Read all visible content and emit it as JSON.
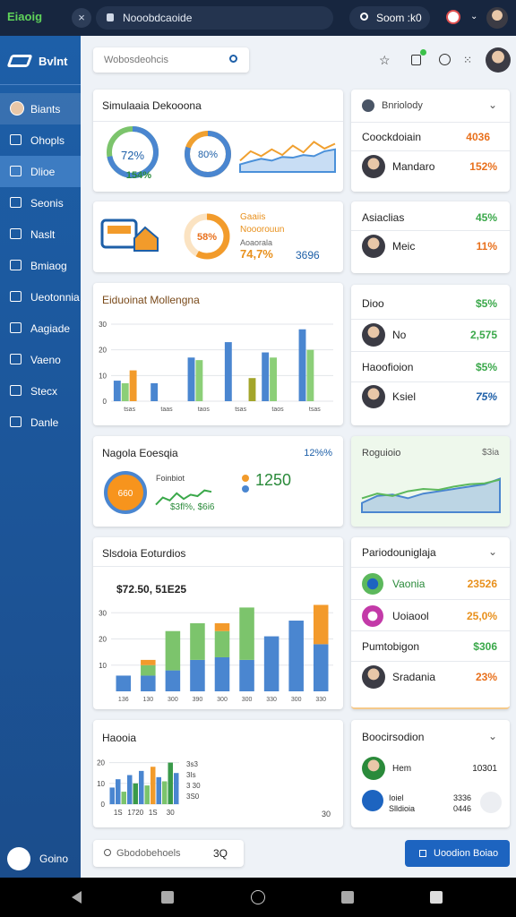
{
  "browser": {
    "logo": "Eiaoig",
    "address": "Nooobdcaoide",
    "search": "Soom :k0"
  },
  "sidebar": {
    "brand": "Bvlnt",
    "items": [
      "Biants",
      "Ohopls",
      "Dlioe",
      "Seonis",
      "Naslt",
      "Bmiaog",
      "Ueotonnia",
      "Aagiade",
      "Vaeno",
      "Stecx",
      "Danle"
    ],
    "footer": "Goino"
  },
  "search": {
    "placeholder": "Wobosdeohcis"
  },
  "overview": {
    "title": "Simulaaia Dekooona",
    "donut1": {
      "value": 72,
      "label": "72%",
      "sub": "154%"
    },
    "donut2": {
      "value": 80,
      "label": "80%"
    },
    "trend": {
      "ylim": [
        0,
        100
      ],
      "series": [
        {
          "color": "#f0a030",
          "values": [
            30,
            55,
            42,
            60,
            45,
            70,
            52,
            80,
            62,
            75
          ]
        },
        {
          "color": "#4a90d9",
          "values": [
            20,
            28,
            35,
            30,
            40,
            38,
            45,
            42,
            55,
            60
          ]
        }
      ]
    }
  },
  "transit": {
    "donut": {
      "value": 58,
      "label": "58%"
    },
    "lines": [
      "Gaaiis",
      "Nooorouun",
      "Aoaorala"
    ],
    "stat1": "74,7%",
    "stat2": "3696"
  },
  "enrollment": {
    "title": "Eiduoinat Mollengna",
    "categories": [
      "tsas",
      "taas",
      "taos",
      "tsas",
      "taos",
      "tsas"
    ],
    "ylim": [
      0,
      30
    ],
    "yticks": [
      0,
      10,
      20,
      30
    ],
    "series": [
      {
        "color": "#4a86d0",
        "values": [
          8,
          7,
          17,
          23,
          19,
          28
        ]
      },
      {
        "color": "#8ccf78",
        "values": [
          7,
          null,
          16,
          null,
          17,
          20
        ]
      },
      {
        "color": "#f29b2b",
        "values": [
          12,
          null,
          null,
          null,
          null,
          null
        ]
      },
      {
        "color": "#a3a52a",
        "values": [
          null,
          null,
          null,
          9,
          null,
          null
        ]
      }
    ]
  },
  "network": {
    "title": "Nagola Eoesqia",
    "badge": "12%%",
    "donut": "660",
    "chart_label": "Foinbiot",
    "trend": {
      "ylim": [
        0,
        100
      ],
      "color": "#3aa84a",
      "values": [
        20,
        45,
        35,
        60,
        40,
        55,
        50,
        70,
        65
      ]
    },
    "big": "1250",
    "stats": "$3fl%, $6i6"
  },
  "sales": {
    "title": "Slsdoia Eoturdios",
    "subtitle": "$72.50, 51E25",
    "categories": [
      "136",
      "130",
      "300",
      "390",
      "300",
      "300",
      "330",
      "300",
      "330"
    ],
    "ylim": [
      0,
      40
    ],
    "yticks": [
      10,
      20,
      30
    ],
    "series": [
      {
        "color": "#4a86d0",
        "values": [
          6,
          6,
          8,
          12,
          13,
          12,
          21,
          27,
          18
        ]
      },
      {
        "color": "#7cc46c",
        "values": [
          0,
          4,
          15,
          14,
          10,
          20,
          0,
          0,
          0
        ]
      },
      {
        "color": "#f39a2b",
        "values": [
          0,
          2,
          0,
          0,
          3,
          0,
          0,
          0,
          15
        ]
      }
    ]
  },
  "mini": {
    "title": "Haooia",
    "ylim": [
      0,
      25
    ],
    "yticks": [
      0,
      10,
      20
    ],
    "xlabels": [
      "1S",
      "1720",
      "1S",
      "30"
    ],
    "values": [
      8,
      12,
      6,
      14,
      10,
      16,
      9,
      18,
      13,
      11,
      20,
      15
    ],
    "colors": [
      "#4a86d0",
      "#4a86d0",
      "#7cc46c",
      "#4a86d0",
      "#3a9a4a",
      "#4a86d0",
      "#7cc46c",
      "#f29b2b",
      "#4a86d0",
      "#7cc46c",
      "#3a9a4a",
      "#4a86d0"
    ],
    "legend": [
      "3s3",
      "3Is",
      "3 30",
      "3S0"
    ],
    "corner": "30"
  },
  "footer_search": {
    "placeholder": "Gbodobehoels",
    "hint": "3Q"
  },
  "submit": "Uoodion Boiao",
  "ranking": {
    "title": "Bnriolody",
    "rows": [
      {
        "name": "Coockdoiain",
        "value": "4036"
      },
      {
        "name": "Mandaro",
        "value": "152%"
      }
    ]
  },
  "accounts": {
    "rows": [
      {
        "name": "Asiaclias",
        "value": "45%"
      },
      {
        "name": "Meic",
        "value": "11%"
      }
    ]
  },
  "users": {
    "rows": [
      {
        "name": "Dioo",
        "value": "$5%"
      },
      {
        "name": "No",
        "value": "2,575"
      },
      {
        "name": "Haoofioion",
        "value": "$5%"
      },
      {
        "name": "Ksiel",
        "value": "75%"
      }
    ]
  },
  "revenue": {
    "title": "Roguioio",
    "badge": "$3ia",
    "ylim": [
      0,
      100
    ],
    "series": [
      {
        "color": "#5cb85c",
        "values": [
          30,
          40,
          35,
          45,
          50,
          48,
          55,
          60,
          62,
          70
        ]
      },
      {
        "color": "#4a86d0",
        "values": [
          20,
          35,
          38,
          30,
          40,
          45,
          50,
          55,
          60,
          72
        ]
      }
    ]
  },
  "periods": {
    "title": "Pariodouniglaja",
    "rows": [
      {
        "name": "Vaonia",
        "value": "23526"
      },
      {
        "name": "Uoiaool",
        "value": "25,0%"
      },
      {
        "name": "Pumtobigon",
        "value": "$306"
      },
      {
        "name": "Sradania",
        "value": "23%"
      }
    ]
  },
  "sessions": {
    "title": "Boocirsodion",
    "rows": [
      {
        "name": "Hem",
        "value": "10301"
      },
      {
        "name": "Ioiel",
        "value": "3336"
      },
      {
        "name": "Slldioia",
        "value": "0446"
      }
    ]
  }
}
